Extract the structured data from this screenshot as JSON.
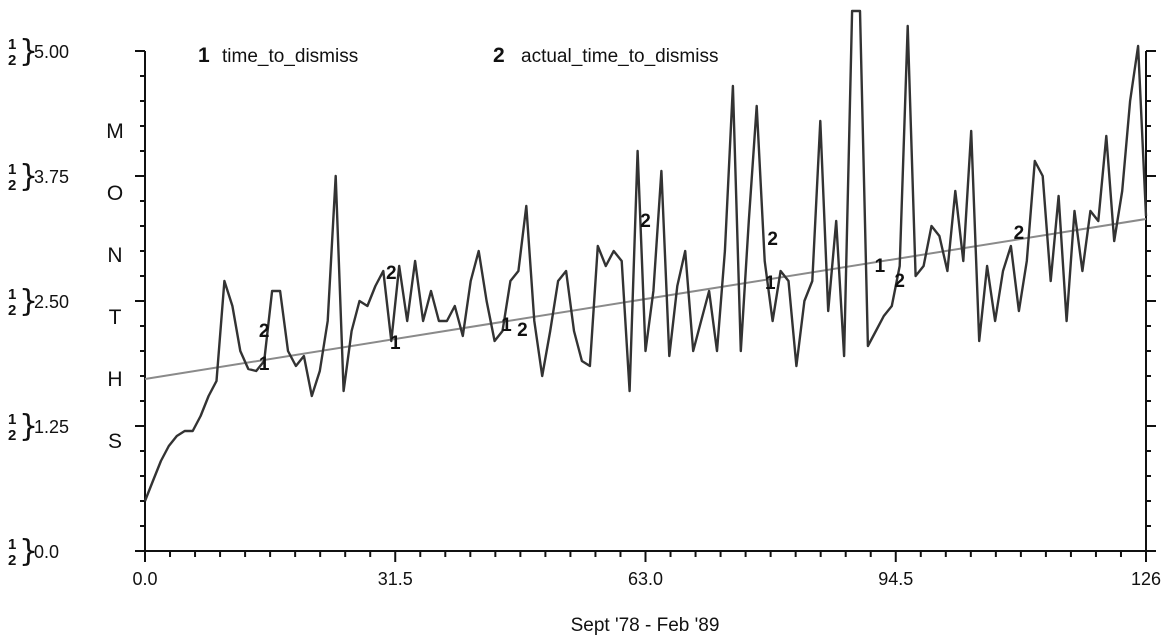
{
  "chart_data": {
    "type": "line",
    "title": "",
    "xlabel": "Sept '78 - Feb '89",
    "ylabel": "MONTHS",
    "xlim": [
      0,
      126
    ],
    "ylim": [
      0,
      5
    ],
    "x_ticks": [
      "0.0",
      "31.5",
      "63.0",
      "94.5",
      "126"
    ],
    "y_ticks": [
      "0.0",
      "1.25",
      "2.50",
      "3.75",
      "5.00"
    ],
    "y_tick_prefix_top": "1",
    "y_tick_prefix_bottom": "2",
    "y_tick_brace": "}",
    "legend": [
      {
        "marker": "1",
        "label": "time_to_dismiss"
      },
      {
        "marker": "2",
        "label": "actual_time_to_dismiss"
      }
    ],
    "series": [
      {
        "name": "time_to_dismiss",
        "marker": "1",
        "color": "#8a8a8a",
        "x": [
          0,
          126
        ],
        "y": [
          1.72,
          3.32
        ]
      },
      {
        "name": "actual_time_to_dismiss",
        "marker": "2",
        "color": "#333333",
        "x": [
          0,
          1,
          2,
          3,
          4,
          5,
          6,
          7,
          8,
          9,
          10,
          11,
          12,
          13,
          14,
          15,
          16,
          17,
          18,
          19,
          20,
          21,
          22,
          23,
          24,
          25,
          26,
          27,
          28,
          29,
          30,
          31,
          32,
          33,
          34,
          35,
          36,
          37,
          38,
          39,
          40,
          41,
          42,
          43,
          44,
          45,
          46,
          47,
          48,
          49,
          50,
          51,
          52,
          53,
          54,
          55,
          56,
          57,
          58,
          59,
          60,
          61,
          62,
          63,
          64,
          65,
          66,
          67,
          68,
          69,
          70,
          71,
          72,
          73,
          74,
          75,
          76,
          77,
          78,
          79,
          80,
          81,
          82,
          83,
          84,
          85,
          86,
          87,
          88,
          89,
          90,
          91,
          92,
          93,
          94,
          95,
          96,
          97,
          98,
          99,
          100,
          101,
          102,
          103,
          104,
          105,
          106,
          107,
          108,
          109,
          110,
          111,
          112,
          113,
          114,
          115,
          116,
          117,
          118,
          119,
          120,
          121,
          122,
          123,
          124,
          125,
          126
        ],
        "y": [
          0.5,
          0.7,
          0.9,
          1.05,
          1.15,
          1.2,
          1.2,
          1.35,
          1.55,
          1.7,
          2.7,
          2.45,
          2.0,
          1.82,
          1.8,
          1.9,
          2.6,
          2.6,
          2.0,
          1.85,
          1.95,
          1.55,
          1.8,
          2.3,
          3.75,
          1.6,
          2.2,
          2.5,
          2.45,
          2.65,
          2.8,
          2.1,
          2.85,
          2.3,
          2.9,
          2.3,
          2.6,
          2.3,
          2.3,
          2.45,
          2.15,
          2.7,
          3.0,
          2.5,
          2.1,
          2.2,
          2.7,
          2.8,
          3.45,
          2.3,
          1.75,
          2.2,
          2.7,
          2.8,
          2.2,
          1.9,
          1.85,
          3.05,
          2.85,
          3.0,
          2.9,
          1.6,
          4.0,
          2.0,
          2.6,
          3.8,
          1.95,
          2.65,
          3.0,
          2.0,
          2.3,
          2.6,
          2.0,
          3.0,
          4.65,
          2.0,
          3.3,
          4.45,
          2.9,
          2.3,
          2.8,
          2.7,
          1.85,
          2.5,
          2.7,
          4.3,
          2.4,
          3.3,
          1.95,
          5.4,
          5.4,
          2.05,
          2.2,
          2.35,
          2.45,
          2.85,
          5.25,
          2.75,
          2.85,
          3.25,
          3.15,
          2.8,
          3.6,
          2.9,
          4.2,
          2.1,
          2.85,
          2.3,
          2.8,
          3.05,
          2.4,
          2.9,
          3.9,
          3.75,
          2.7,
          3.55,
          2.3,
          3.4,
          2.8,
          3.4,
          3.3,
          4.15,
          3.1,
          3.6,
          4.5,
          5.05,
          3.35
        ]
      }
    ],
    "series_markers": [
      {
        "series": 2,
        "label": "2",
        "x": 15,
        "y": 2.2
      },
      {
        "series": 1,
        "label": "1",
        "x": 15,
        "y": 1.87
      },
      {
        "series": 2,
        "label": "2",
        "x": 31,
        "y": 2.78
      },
      {
        "series": 1,
        "label": "1",
        "x": 31.5,
        "y": 2.08
      },
      {
        "series": 1,
        "label": "1",
        "x": 45.5,
        "y": 2.26
      },
      {
        "series": 2,
        "label": "2",
        "x": 47.5,
        "y": 2.21
      },
      {
        "series": 2,
        "label": "2",
        "x": 63,
        "y": 3.3
      },
      {
        "series": 1,
        "label": "1",
        "x": 78.7,
        "y": 2.68
      },
      {
        "series": 2,
        "label": "2",
        "x": 79,
        "y": 3.12
      },
      {
        "series": 1,
        "label": "1",
        "x": 92.5,
        "y": 2.85
      },
      {
        "series": 2,
        "label": "2",
        "x": 95,
        "y": 2.7
      },
      {
        "series": 2,
        "label": "2",
        "x": 110,
        "y": 3.18
      }
    ]
  }
}
